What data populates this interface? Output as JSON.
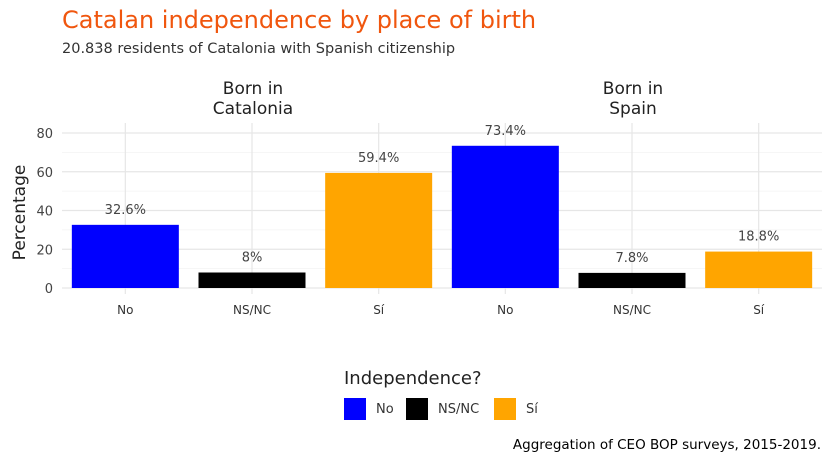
{
  "chart_data": {
    "type": "bar",
    "title": "Catalan independence by place of birth",
    "subtitle": "20.838 residents of Catalonia with Spanish citizenship",
    "caption": "Aggregation of CEO BOP surveys, 2015-2019.",
    "ylabel": "Percentage",
    "xlabel": "",
    "ylim": [
      0,
      85
    ],
    "yticks": [
      0,
      20,
      40,
      60,
      80
    ],
    "grid": true,
    "legend_position": "bottom",
    "legend_title": "Independence?",
    "categories": [
      "No",
      "NS/NC",
      "Sí"
    ],
    "colors": {
      "No": "#0000ff",
      "NS/NC": "#000000",
      "Sí": "#ffa500"
    },
    "panels": [
      {
        "title": "Born in\nCatalonia",
        "values": [
          32.6,
          8,
          59.4
        ],
        "labels": [
          "32.6%",
          "8%",
          "59.4%"
        ]
      },
      {
        "title": "Born in\nSpain",
        "values": [
          73.4,
          7.8,
          18.8
        ],
        "labels": [
          "73.4%",
          "7.8%",
          "18.8%"
        ]
      }
    ]
  }
}
